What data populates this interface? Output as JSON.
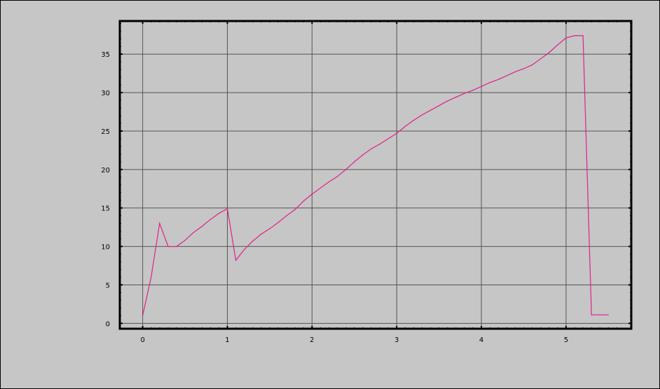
{
  "colors": {
    "background": "#c6c6c6",
    "grid": "#555555",
    "axis": "#000000",
    "series": "#e0208c"
  },
  "chart_data": {
    "type": "line",
    "title": "",
    "xlabel": "",
    "ylabel": "",
    "xlim": [
      -0.27,
      5.77
    ],
    "ylim": [
      -0.7,
      39.3
    ],
    "grid": true,
    "xticks": [
      0,
      1,
      2,
      3,
      4,
      5
    ],
    "yticks": [
      0,
      5,
      10,
      15,
      20,
      25,
      30,
      35
    ],
    "xtick_labels": [
      "0",
      "1",
      "2",
      "3",
      "4",
      "5"
    ],
    "ytick_labels": [
      "0",
      "5",
      "10",
      "15",
      "20",
      "25",
      "30",
      "35"
    ],
    "series": [
      {
        "x": [
          0,
          0.1,
          0.2,
          0.3,
          0.4,
          0.5,
          0.6,
          0.7,
          0.8,
          0.9,
          1.0,
          1.1,
          1.2,
          1.3,
          1.4,
          1.5,
          1.6,
          1.7,
          1.8,
          1.9,
          2.0,
          2.1,
          2.2,
          2.3,
          2.4,
          2.5,
          2.6,
          2.7,
          2.8,
          2.9,
          3.0,
          3.1,
          3.2,
          3.3,
          3.4,
          3.5,
          3.6,
          3.7,
          3.8,
          3.9,
          4.0,
          4.1,
          4.2,
          4.3,
          4.4,
          4.5,
          4.6,
          4.7,
          4.8,
          4.9,
          5.0,
          5.1,
          5.2,
          5.3,
          5.4,
          5.5
        ],
        "y": [
          1,
          6,
          13,
          10,
          10,
          10.8,
          11.8,
          12.6,
          13.5,
          14.3,
          14.9,
          8.2,
          9.6,
          10.7,
          11.6,
          12.3,
          13.1,
          14.0,
          14.8,
          15.9,
          16.8,
          17.6,
          18.4,
          19.1,
          20.0,
          21.0,
          21.9,
          22.7,
          23.3,
          24.0,
          24.7,
          25.6,
          26.4,
          27.1,
          27.7,
          28.3,
          28.9,
          29.4,
          29.9,
          30.3,
          30.8,
          31.3,
          31.7,
          32.2,
          32.7,
          33.1,
          33.6,
          34.4,
          35.2,
          36.2,
          37.1,
          37.4,
          37.4,
          1.1,
          1.1,
          1.1
        ]
      }
    ]
  }
}
